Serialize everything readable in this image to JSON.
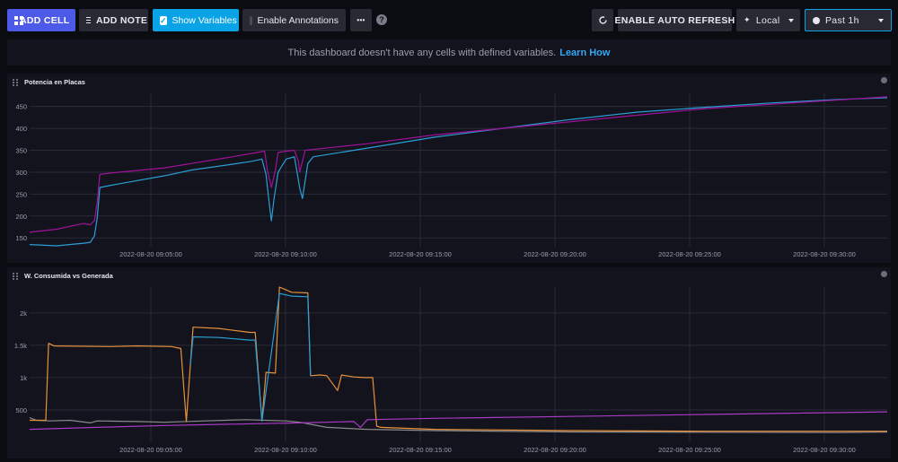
{
  "toolbar": {
    "add_cell": "ADD CELL",
    "add_note": "ADD NOTE",
    "show_variables": "Show Variables",
    "enable_annotations": "Enable Annotations",
    "more": "•••",
    "help": "?",
    "auto_refresh": "ENABLE AUTO REFRESH",
    "timezone": "Local",
    "time_range": "Past 1h"
  },
  "banner": {
    "text": "This dashboard doesn't have any cells with defined variables.",
    "link": "Learn How"
  },
  "colors": {
    "primary": "#4d5ae8",
    "cyan": "#0aa3e6",
    "series_cyan": "#2a9fd6",
    "series_purple": "#a0129a",
    "series_orange": "#e8913a",
    "series_gray": "#8a8a8a",
    "series_purple_line": "#a83bc4"
  },
  "panels": [
    {
      "title": "Potencia en Placas",
      "chart_data": {
        "type": "line",
        "x_ticks": [
          "2022-08-20 09:05:00",
          "2022-08-20 09:10:00",
          "2022-08-20 09:15:00",
          "2022-08-20 09:20:00",
          "2022-08-20 09:25:00",
          "2022-08-20 09:30:00"
        ],
        "y_ticks": [
          "150",
          "200",
          "250",
          "300",
          "350",
          "400",
          "450"
        ],
        "ylim": [
          130,
          480
        ],
        "x_range_min": [
          0,
          63.5
        ],
        "series": [
          {
            "color": "#2a9fd6",
            "points": [
              [
                0,
                135
              ],
              [
                2,
                132
              ],
              [
                4,
                138
              ],
              [
                4.5,
                140
              ],
              [
                4.8,
                155
              ],
              [
                5,
                195
              ],
              [
                5.2,
                265
              ],
              [
                6,
                270
              ],
              [
                10,
                292
              ],
              [
                12,
                305
              ],
              [
                15,
                318
              ],
              [
                16.5,
                325
              ],
              [
                17.2,
                330
              ],
              [
                17.5,
                295
              ],
              [
                17.7,
                240
              ],
              [
                17.9,
                189
              ],
              [
                18.1,
                240
              ],
              [
                18.4,
                300
              ],
              [
                19,
                330
              ],
              [
                19.6,
                335
              ],
              [
                19.8,
                300
              ],
              [
                20,
                263
              ],
              [
                20.2,
                240
              ],
              [
                20.6,
                320
              ],
              [
                21,
                335
              ],
              [
                25,
                355
              ],
              [
                30,
                380
              ],
              [
                35,
                400
              ],
              [
                40,
                420
              ],
              [
                45,
                437
              ],
              [
                50,
                448
              ],
              [
                55,
                458
              ],
              [
                60,
                466
              ],
              [
                63.5,
                470
              ]
            ]
          },
          {
            "color": "#a0129a",
            "points": [
              [
                0,
                163
              ],
              [
                2,
                170
              ],
              [
                4,
                183
              ],
              [
                4.5,
                180
              ],
              [
                4.8,
                190
              ],
              [
                5,
                230
              ],
              [
                5.2,
                295
              ],
              [
                6,
                298
              ],
              [
                10,
                310
              ],
              [
                12,
                320
              ],
              [
                15,
                335
              ],
              [
                17.4,
                348
              ],
              [
                17.6,
                305
              ],
              [
                17.9,
                265
              ],
              [
                18.2,
                305
              ],
              [
                18.4,
                345
              ],
              [
                19,
                348
              ],
              [
                19.6,
                350
              ],
              [
                19.9,
                325
              ],
              [
                20,
                300
              ],
              [
                20.4,
                350
              ],
              [
                25,
                365
              ],
              [
                30,
                385
              ],
              [
                35,
                400
              ],
              [
                40,
                415
              ],
              [
                45,
                430
              ],
              [
                50,
                445
              ],
              [
                55,
                455
              ],
              [
                60,
                465
              ],
              [
                63.5,
                472
              ]
            ]
          }
        ]
      }
    },
    {
      "title": "W. Consumida vs Generada",
      "chart_data": {
        "type": "line",
        "x_ticks": [
          "2022-08-20 09:05:00",
          "2022-08-20 09:10:00",
          "2022-08-20 09:15:00",
          "2022-08-20 09:20:00",
          "2022-08-20 09:25:00",
          "2022-08-20 09:30:00"
        ],
        "y_ticks": [
          "500",
          "1k",
          "1.5k",
          "2k"
        ],
        "ylim": [
          0,
          2400
        ],
        "x_range_min": [
          0,
          63.5
        ],
        "series": [
          {
            "color": "#8a8a8a",
            "points": [
              [
                0,
                380
              ],
              [
                0.5,
                340
              ],
              [
                1.5,
                330
              ],
              [
                3,
                340
              ],
              [
                4.5,
                300
              ],
              [
                5,
                330
              ],
              [
                8,
                320
              ],
              [
                10,
                310
              ],
              [
                13,
                330
              ],
              [
                16,
                350
              ],
              [
                17.5,
                340
              ],
              [
                19,
                330
              ],
              [
                20,
                310
              ],
              [
                22,
                230
              ],
              [
                25,
                200
              ],
              [
                30,
                180
              ],
              [
                40,
                160
              ],
              [
                50,
                155
              ],
              [
                60,
                150
              ],
              [
                63.5,
                160
              ]
            ]
          },
          {
            "color": "#e8913a",
            "points": [
              [
                0,
                340
              ],
              [
                1.2,
                340
              ],
              [
                1.4,
                1530
              ],
              [
                1.8,
                1490
              ],
              [
                6,
                1480
              ],
              [
                8,
                1490
              ],
              [
                10.5,
                1480
              ],
              [
                11.2,
                1450
              ],
              [
                11.6,
                320
              ],
              [
                11.9,
                1200
              ],
              [
                12.1,
                1780
              ],
              [
                14,
                1760
              ],
              [
                16.3,
                1700
              ],
              [
                16.7,
                1700
              ],
              [
                17.2,
                330
              ],
              [
                17.5,
                1080
              ],
              [
                18.2,
                1070
              ],
              [
                18.5,
                2400
              ],
              [
                19.4,
                2320
              ],
              [
                20.6,
                2310
              ],
              [
                20.8,
                1030
              ],
              [
                21.5,
                1040
              ],
              [
                22,
                1030
              ],
              [
                22.8,
                800
              ],
              [
                23.1,
                1040
              ],
              [
                24,
                1010
              ],
              [
                24.8,
                1000
              ],
              [
                25.4,
                1000
              ],
              [
                25.7,
                250
              ],
              [
                26,
                230
              ],
              [
                30,
                200
              ],
              [
                40,
                180
              ],
              [
                50,
                170
              ],
              [
                63.5,
                170
              ]
            ]
          },
          {
            "color": "#2a9fd6",
            "points": [
              [
                11.9,
                1200
              ],
              [
                12.1,
                1630
              ],
              [
                14,
                1620
              ],
              [
                16.3,
                1580
              ],
              [
                16.7,
                1580
              ],
              [
                17.2,
                330
              ],
              [
                18.5,
                2300
              ],
              [
                19.4,
                2260
              ],
              [
                20.6,
                2250
              ],
              [
                20.8,
                1030
              ]
            ]
          },
          {
            "color": "#a83bc4",
            "points": [
              [
                0,
                200
              ],
              [
                5,
                230
              ],
              [
                10,
                260
              ],
              [
                15,
                280
              ],
              [
                20,
                300
              ],
              [
                24,
                320
              ],
              [
                24.5,
                230
              ],
              [
                25,
                350
              ],
              [
                30,
                370
              ],
              [
                40,
                400
              ],
              [
                50,
                430
              ],
              [
                63.5,
                470
              ]
            ]
          }
        ]
      }
    }
  ]
}
